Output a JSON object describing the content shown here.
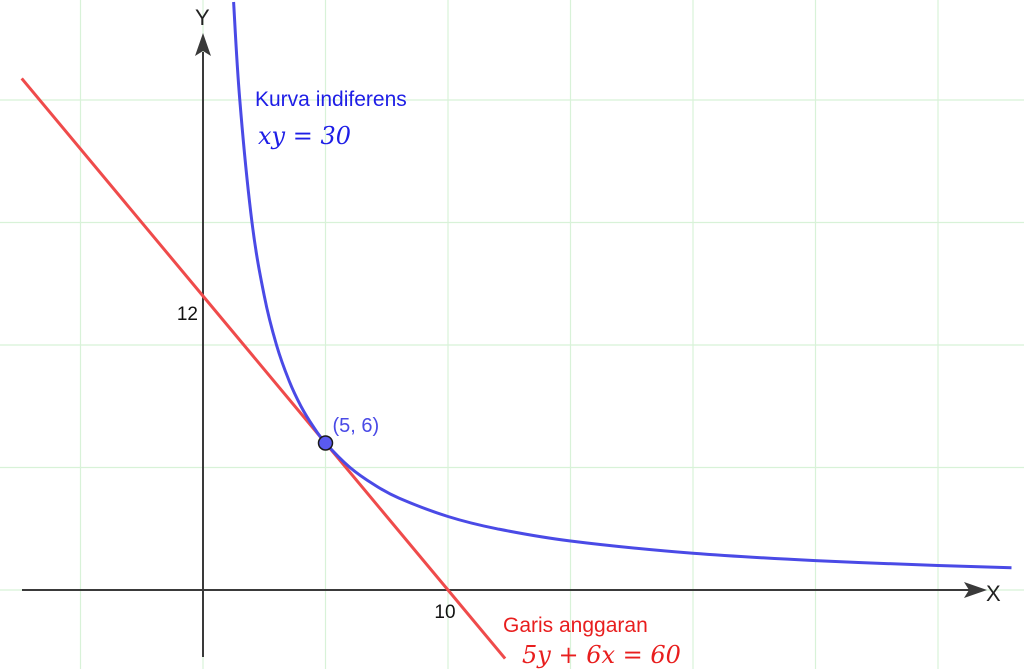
{
  "chart_data": {
    "type": "line",
    "title": "",
    "xlabel": "X",
    "ylabel": "Y",
    "xlim": [
      -7.4,
      33
    ],
    "ylim": [
      -2.8,
      24
    ],
    "grid": true,
    "ticks": {
      "x": [
        {
          "value": 10,
          "label": "10"
        }
      ],
      "y": [
        {
          "value": 12,
          "label": "12"
        }
      ]
    },
    "series": [
      {
        "name": "Kurva indiferens",
        "equation": "xy = 30",
        "color": "#4a4ae6",
        "x": [
          1.25,
          1.5,
          2,
          2.5,
          3,
          3.5,
          4,
          4.5,
          5,
          6,
          7,
          8,
          10,
          12,
          15,
          20,
          25,
          30,
          33
        ],
        "y": [
          24,
          20,
          15,
          12,
          10,
          8.57,
          7.5,
          6.67,
          6,
          5,
          4.29,
          3.75,
          3,
          2.5,
          2,
          1.5,
          1.2,
          1,
          0.91
        ]
      },
      {
        "name": "Garis anggaran",
        "equation": "5y + 6x = 60",
        "color": "#ef4b4b",
        "x": [
          -7.4,
          0,
          5,
          10,
          12.33
        ],
        "y": [
          20.88,
          12,
          6,
          0,
          -2.8
        ]
      }
    ],
    "points": [
      {
        "x": 5,
        "y": 6,
        "label": "(5, 6)"
      }
    ],
    "annotations": {
      "curve_label": "Kurva indiferens",
      "curve_equation": "xy = 30",
      "line_label": "Garis anggaran",
      "line_equation": "5y + 6x = 60",
      "point_label": "(5, 6)"
    },
    "colors": {
      "curve": "#4a4ae6",
      "curve_label": "#1e1ee6",
      "line": "#ef4b4b",
      "line_label": "#e81e1e",
      "point_fill": "#5a5af0",
      "grid": "#d8f2d8",
      "axis": "#3a3a3a"
    }
  }
}
